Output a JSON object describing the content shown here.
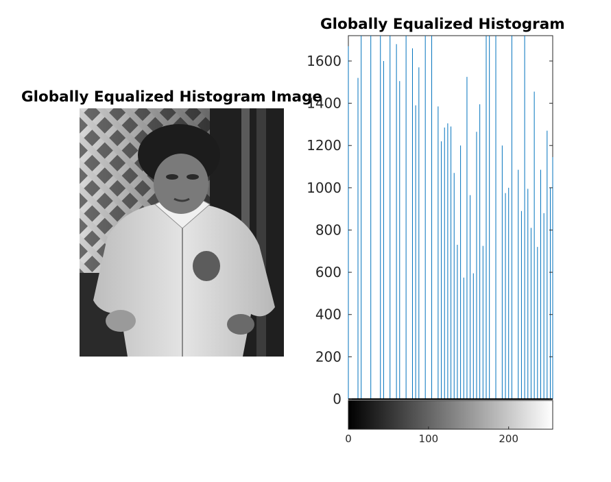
{
  "figure": {
    "image_title": "Globally Equalized Histogram Image",
    "histogram_title": "Globally Equalized Histogram"
  },
  "colors": {
    "stem": "#0072BD",
    "axis": "#262626",
    "background": "#ffffff"
  },
  "chart_data": {
    "type": "bar",
    "title": "Globally Equalized Histogram",
    "xlabel": "",
    "ylabel": "",
    "xlim": [
      0,
      255
    ],
    "ylim": [
      0,
      1720
    ],
    "y_ticks": [
      0,
      200,
      400,
      600,
      800,
      1000,
      1200,
      1400,
      1600
    ],
    "x_ticks": [
      0,
      100,
      200
    ],
    "grid": false,
    "colorbar": "grayscale",
    "x": [
      0,
      12,
      16,
      28,
      40,
      44,
      52,
      60,
      64,
      72,
      80,
      84,
      88,
      96,
      104,
      112,
      116,
      120,
      124,
      128,
      132,
      136,
      140,
      144,
      148,
      152,
      156,
      160,
      164,
      168,
      172,
      176,
      184,
      192,
      196,
      200,
      204,
      212,
      216,
      220,
      224,
      228,
      232,
      236,
      240,
      244,
      248,
      252,
      255
    ],
    "values": [
      1670,
      1520,
      1720,
      1720,
      1720,
      1600,
      1720,
      1680,
      1505,
      1720,
      1660,
      1390,
      1570,
      1720,
      1720,
      1385,
      1220,
      1285,
      1305,
      1290,
      1070,
      730,
      1200,
      575,
      1525,
      965,
      595,
      1265,
      1395,
      725,
      1720,
      1720,
      1720,
      1200,
      975,
      1000,
      1720,
      1085,
      890,
      1720,
      995,
      810,
      1455,
      720,
      1085,
      880,
      1270,
      1000,
      1145
    ]
  }
}
